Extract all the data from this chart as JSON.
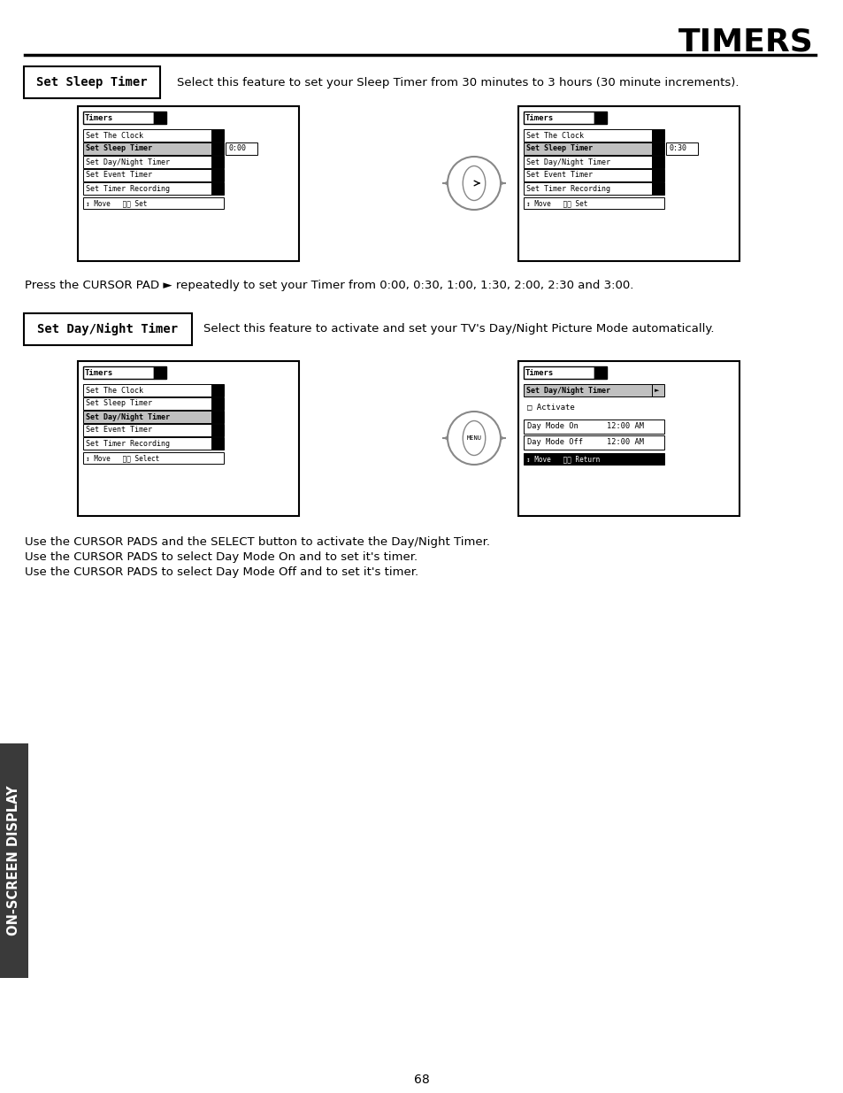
{
  "title": "TIMERS",
  "page_number": "68",
  "bg_color": "#ffffff",
  "section1_label": "Set Sleep Timer",
  "section1_desc": "Select this feature to set your Sleep Timer from 30 minutes to 3 hours (30 minute increments).",
  "section1_note": "Press the CURSOR PAD ► repeatedly to set your Timer from 0:00, 0:30, 1:00, 1:30, 2:00, 2:30 and 3:00.",
  "section2_label": "Set Day/Night Timer",
  "section2_desc": "Select this feature to activate and set your TV's Day/Night Picture Mode automatically.",
  "section2_notes": [
    "Use the CURSOR PADS and the SELECT button to activate the Day/Night Timer.",
    "Use the CURSOR PADS to select Day Mode On and to set it's timer.",
    "Use the CURSOR PADS to select Day Mode Off and to set it's timer."
  ],
  "sidebar_text": "ON-SCREEN DISPLAY",
  "menu_items_all": [
    "Set The Clock",
    "Set Sleep Timer",
    "Set Day/Night Timer",
    "Set Event Timer",
    "Set Timer Recording"
  ],
  "menu1_selected": "Set Sleep Timer",
  "menu1_left_value": "0:00",
  "menu1_right_value": "0:30",
  "menu2_selected": "Set Day/Night Timer"
}
